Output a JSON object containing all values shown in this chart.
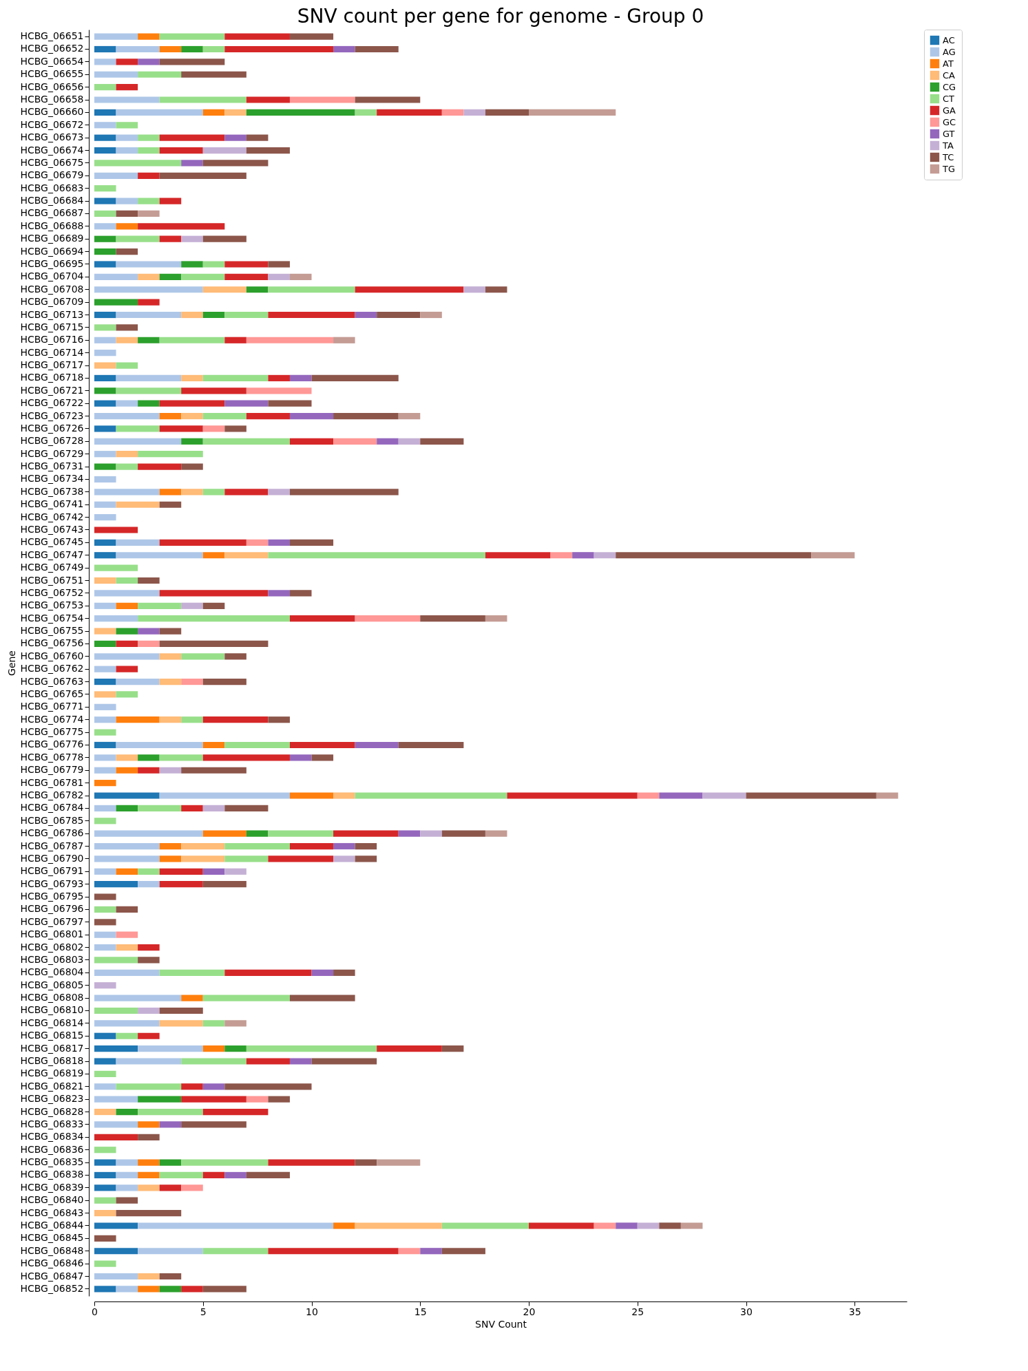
{
  "chart_data": {
    "type": "bar",
    "orientation": "horizontal",
    "stacked": true,
    "title": "SNV count per gene for genome - Group 0",
    "xlabel": "SNV Count",
    "ylabel": "Gene",
    "legend": "top right",
    "grid": false,
    "categories": [
      "HCBG_06651",
      "HCBG_06652",
      "HCBG_06654",
      "HCBG_06655",
      "HCBG_06656",
      "HCBG_06658",
      "HCBG_06660",
      "HCBG_06672",
      "HCBG_06673",
      "HCBG_06674",
      "HCBG_06675",
      "HCBG_06679",
      "HCBG_06683",
      "HCBG_06684",
      "HCBG_06687",
      "HCBG_06688",
      "HCBG_06689",
      "HCBG_06694",
      "HCBG_06695",
      "HCBG_06704",
      "HCBG_06708",
      "HCBG_06709",
      "HCBG_06713",
      "HCBG_06715",
      "HCBG_06716",
      "HCBG_06714",
      "HCBG_06717",
      "HCBG_06718",
      "HCBG_06721",
      "HCBG_06722",
      "HCBG_06723",
      "HCBG_06726",
      "HCBG_06728",
      "HCBG_06729",
      "HCBG_06731",
      "HCBG_06734",
      "HCBG_06738",
      "HCBG_06741",
      "HCBG_06742",
      "HCBG_06743",
      "HCBG_06745",
      "HCBG_06747",
      "HCBG_06749",
      "HCBG_06751",
      "HCBG_06752",
      "HCBG_06753",
      "HCBG_06754",
      "HCBG_06755",
      "HCBG_06756",
      "HCBG_06760",
      "HCBG_06762",
      "HCBG_06763",
      "HCBG_06765",
      "HCBG_06771",
      "HCBG_06774",
      "HCBG_06775",
      "HCBG_06776",
      "HCBG_06778",
      "HCBG_06779",
      "HCBG_06781",
      "HCBG_06782",
      "HCBG_06784",
      "HCBG_06785",
      "HCBG_06786",
      "HCBG_06787",
      "HCBG_06790",
      "HCBG_06791",
      "HCBG_06793",
      "HCBG_06795",
      "HCBG_06796",
      "HCBG_06797",
      "HCBG_06801",
      "HCBG_06802",
      "HCBG_06803",
      "HCBG_06804",
      "HCBG_06805",
      "HCBG_06808",
      "HCBG_06810",
      "HCBG_06814",
      "HCBG_06815",
      "HCBG_06817",
      "HCBG_06818",
      "HCBG_06819",
      "HCBG_06821",
      "HCBG_06823",
      "HCBG_06828",
      "HCBG_06833",
      "HCBG_06834",
      "HCBG_06836",
      "HCBG_06835",
      "HCBG_06838",
      "HCBG_06839",
      "HCBG_06840",
      "HCBG_06843",
      "HCBG_06844",
      "HCBG_06845",
      "HCBG_06848",
      "HCBG_06846",
      "HCBG_06847",
      "HCBG_06852"
    ],
    "xlim": [
      0,
      37.4
    ],
    "xticks": [
      0,
      5,
      10,
      15,
      20,
      25,
      30,
      35
    ],
    "series": [
      {
        "name": "AC",
        "color": "#1f77b4",
        "values": [
          0,
          1,
          0,
          0,
          0,
          0,
          1,
          0,
          1,
          1,
          0,
          0,
          0,
          1,
          0,
          0,
          0,
          0,
          1,
          0,
          0,
          0,
          1,
          0,
          0,
          0,
          0,
          1,
          0,
          1,
          0,
          1,
          0,
          0,
          0,
          0,
          0,
          0,
          0,
          0,
          1,
          1,
          0,
          0,
          0,
          0,
          0,
          0,
          0,
          0,
          0,
          1,
          0,
          0,
          0,
          0,
          1,
          0,
          0,
          0,
          3,
          0,
          0,
          0,
          0,
          0,
          0,
          2,
          0,
          0,
          0,
          0,
          0,
          0,
          0,
          0,
          0,
          0,
          0,
          1,
          2,
          1,
          0,
          0,
          0,
          0,
          0,
          0,
          0,
          1,
          1,
          1,
          0,
          0,
          2,
          0,
          2,
          0,
          0,
          1
        ]
      },
      {
        "name": "AG",
        "color": "#aec7e8",
        "values": [
          2,
          2,
          1,
          2,
          0,
          3,
          4,
          1,
          1,
          1,
          0,
          2,
          0,
          1,
          0,
          1,
          0,
          0,
          3,
          2,
          5,
          0,
          3,
          0,
          1,
          1,
          0,
          3,
          0,
          1,
          3,
          0,
          4,
          1,
          0,
          1,
          3,
          1,
          1,
          0,
          2,
          4,
          0,
          0,
          3,
          1,
          2,
          0,
          0,
          3,
          1,
          2,
          0,
          1,
          1,
          0,
          4,
          1,
          1,
          0,
          6,
          1,
          0,
          5,
          3,
          3,
          1,
          1,
          0,
          0,
          0,
          1,
          1,
          0,
          3,
          0,
          4,
          0,
          3,
          0,
          3,
          3,
          0,
          1,
          2,
          0,
          2,
          0,
          0,
          1,
          1,
          1,
          0,
          0,
          9,
          0,
          3,
          0,
          2,
          1
        ]
      },
      {
        "name": "AT",
        "color": "#ff7f0e",
        "values": [
          1,
          1,
          0,
          0,
          0,
          0,
          1,
          0,
          0,
          0,
          0,
          0,
          0,
          0,
          0,
          1,
          0,
          0,
          0,
          0,
          0,
          0,
          0,
          0,
          0,
          0,
          0,
          0,
          0,
          0,
          1,
          0,
          0,
          0,
          0,
          0,
          1,
          0,
          0,
          0,
          0,
          1,
          0,
          0,
          0,
          1,
          0,
          0,
          0,
          0,
          0,
          0,
          0,
          0,
          2,
          0,
          1,
          0,
          1,
          1,
          2,
          0,
          0,
          2,
          1,
          1,
          1,
          0,
          0,
          0,
          0,
          0,
          0,
          0,
          0,
          0,
          1,
          0,
          0,
          0,
          1,
          0,
          0,
          0,
          0,
          0,
          1,
          0,
          0,
          1,
          1,
          0,
          0,
          0,
          1,
          0,
          0,
          0,
          0,
          1
        ]
      },
      {
        "name": "CA",
        "color": "#ffbb78",
        "values": [
          0,
          0,
          0,
          0,
          0,
          0,
          1,
          0,
          0,
          0,
          0,
          0,
          0,
          0,
          0,
          0,
          0,
          0,
          0,
          1,
          2,
          0,
          1,
          0,
          1,
          0,
          1,
          1,
          0,
          0,
          1,
          0,
          0,
          1,
          0,
          0,
          1,
          2,
          0,
          0,
          0,
          2,
          0,
          1,
          0,
          0,
          0,
          1,
          0,
          1,
          0,
          1,
          1,
          0,
          1,
          0,
          0,
          1,
          0,
          0,
          1,
          0,
          0,
          0,
          2,
          2,
          0,
          0,
          0,
          0,
          0,
          0,
          1,
          0,
          0,
          0,
          0,
          0,
          2,
          0,
          0,
          0,
          0,
          0,
          0,
          1,
          0,
          0,
          0,
          0,
          0,
          1,
          0,
          1,
          4,
          0,
          0,
          0,
          1,
          0
        ]
      },
      {
        "name": "CG",
        "color": "#2ca02c",
        "values": [
          0,
          1,
          0,
          0,
          0,
          0,
          5,
          0,
          0,
          0,
          0,
          0,
          0,
          0,
          0,
          0,
          1,
          1,
          1,
          1,
          1,
          2,
          1,
          0,
          1,
          0,
          0,
          0,
          1,
          1,
          0,
          0,
          1,
          0,
          1,
          0,
          0,
          0,
          0,
          0,
          0,
          0,
          0,
          0,
          0,
          0,
          0,
          1,
          1,
          0,
          0,
          0,
          0,
          0,
          0,
          0,
          0,
          1,
          0,
          0,
          0,
          1,
          0,
          1,
          0,
          0,
          0,
          0,
          0,
          0,
          0,
          0,
          0,
          0,
          0,
          0,
          0,
          0,
          0,
          0,
          1,
          0,
          0,
          0,
          2,
          1,
          0,
          0,
          0,
          1,
          0,
          0,
          0,
          0,
          0,
          0,
          0,
          0,
          0,
          1
        ]
      },
      {
        "name": "CT",
        "color": "#98df8a",
        "values": [
          3,
          1,
          0,
          2,
          1,
          4,
          1,
          1,
          1,
          1,
          4,
          0,
          1,
          1,
          1,
          0,
          2,
          0,
          1,
          2,
          4,
          0,
          2,
          1,
          3,
          0,
          1,
          3,
          3,
          0,
          2,
          2,
          4,
          3,
          1,
          0,
          1,
          0,
          0,
          0,
          0,
          10,
          2,
          1,
          0,
          2,
          7,
          0,
          0,
          2,
          0,
          0,
          1,
          0,
          1,
          1,
          3,
          2,
          0,
          0,
          7,
          2,
          1,
          3,
          3,
          2,
          1,
          0,
          0,
          1,
          0,
          0,
          0,
          2,
          3,
          0,
          4,
          2,
          1,
          1,
          6,
          3,
          1,
          3,
          0,
          3,
          0,
          0,
          1,
          4,
          2,
          0,
          1,
          0,
          4,
          0,
          3,
          1,
          0,
          0
        ]
      },
      {
        "name": "GA",
        "color": "#d62728",
        "values": [
          3,
          5,
          1,
          0,
          1,
          2,
          3,
          0,
          3,
          2,
          0,
          1,
          0,
          1,
          0,
          4,
          1,
          0,
          2,
          2,
          5,
          1,
          4,
          0,
          1,
          0,
          0,
          1,
          3,
          3,
          2,
          2,
          2,
          0,
          2,
          0,
          2,
          0,
          0,
          2,
          4,
          3,
          0,
          0,
          5,
          0,
          3,
          0,
          1,
          0,
          1,
          0,
          0,
          0,
          3,
          0,
          3,
          4,
          1,
          0,
          6,
          1,
          0,
          3,
          2,
          3,
          2,
          2,
          0,
          0,
          0,
          0,
          1,
          0,
          4,
          0,
          0,
          0,
          0,
          1,
          3,
          2,
          0,
          1,
          3,
          3,
          0,
          2,
          0,
          4,
          1,
          1,
          0,
          0,
          3,
          0,
          6,
          0,
          0,
          1
        ]
      },
      {
        "name": "GC",
        "color": "#ff9896",
        "values": [
          0,
          0,
          0,
          0,
          0,
          3,
          1,
          0,
          0,
          0,
          0,
          0,
          0,
          0,
          0,
          0,
          0,
          0,
          0,
          0,
          0,
          0,
          0,
          0,
          4,
          0,
          0,
          0,
          3,
          0,
          0,
          1,
          2,
          0,
          0,
          0,
          0,
          0,
          0,
          0,
          1,
          1,
          0,
          0,
          0,
          0,
          3,
          0,
          1,
          0,
          0,
          1,
          0,
          0,
          0,
          0,
          0,
          0,
          0,
          0,
          1,
          0,
          0,
          0,
          0,
          0,
          0,
          0,
          0,
          0,
          0,
          1,
          0,
          0,
          0,
          0,
          0,
          0,
          0,
          0,
          0,
          0,
          0,
          0,
          1,
          0,
          0,
          0,
          0,
          0,
          0,
          1,
          0,
          0,
          1,
          0,
          1,
          0,
          0,
          0
        ]
      },
      {
        "name": "GT",
        "color": "#9467bd",
        "values": [
          0,
          1,
          1,
          0,
          0,
          0,
          0,
          0,
          1,
          0,
          1,
          0,
          0,
          0,
          0,
          0,
          0,
          0,
          0,
          0,
          0,
          0,
          1,
          0,
          0,
          0,
          0,
          1,
          0,
          2,
          2,
          0,
          1,
          0,
          0,
          0,
          0,
          0,
          0,
          0,
          1,
          1,
          0,
          0,
          1,
          0,
          0,
          1,
          0,
          0,
          0,
          0,
          0,
          0,
          0,
          0,
          2,
          1,
          0,
          0,
          2,
          0,
          0,
          1,
          1,
          0,
          1,
          0,
          0,
          0,
          0,
          0,
          0,
          0,
          1,
          0,
          0,
          0,
          0,
          0,
          0,
          1,
          0,
          1,
          0,
          0,
          1,
          0,
          0,
          0,
          1,
          0,
          0,
          0,
          1,
          0,
          1,
          0,
          0,
          0
        ]
      },
      {
        "name": "TA",
        "color": "#c5b0d5",
        "values": [
          0,
          0,
          0,
          0,
          0,
          0,
          1,
          0,
          0,
          2,
          0,
          0,
          0,
          0,
          0,
          0,
          1,
          0,
          0,
          1,
          1,
          0,
          0,
          0,
          0,
          0,
          0,
          0,
          0,
          0,
          0,
          0,
          1,
          0,
          0,
          0,
          1,
          0,
          0,
          0,
          0,
          1,
          0,
          0,
          0,
          1,
          0,
          0,
          0,
          0,
          0,
          0,
          0,
          0,
          0,
          0,
          0,
          0,
          1,
          0,
          2,
          1,
          0,
          1,
          0,
          1,
          1,
          0,
          0,
          0,
          0,
          0,
          0,
          0,
          0,
          1,
          0,
          1,
          0,
          0,
          0,
          0,
          0,
          0,
          0,
          0,
          0,
          0,
          0,
          0,
          0,
          0,
          0,
          0,
          1,
          0,
          0,
          0,
          0,
          0
        ]
      },
      {
        "name": "TC",
        "color": "#8c564b",
        "values": [
          2,
          2,
          3,
          3,
          0,
          3,
          2,
          0,
          1,
          2,
          3,
          4,
          0,
          0,
          1,
          0,
          2,
          1,
          1,
          0,
          1,
          0,
          2,
          1,
          0,
          0,
          0,
          4,
          0,
          2,
          3,
          1,
          2,
          0,
          1,
          0,
          5,
          1,
          0,
          0,
          2,
          9,
          0,
          1,
          1,
          1,
          3,
          1,
          5,
          1,
          0,
          2,
          0,
          0,
          1,
          0,
          3,
          1,
          3,
          0,
          6,
          2,
          0,
          2,
          1,
          1,
          0,
          2,
          1,
          1,
          1,
          0,
          0,
          1,
          1,
          0,
          3,
          2,
          0,
          0,
          1,
          3,
          0,
          4,
          1,
          0,
          3,
          1,
          0,
          1,
          2,
          0,
          1,
          3,
          1,
          1,
          2,
          0,
          1,
          2
        ]
      },
      {
        "name": "TG",
        "color": "#c49c94",
        "values": [
          0,
          0,
          0,
          0,
          0,
          0,
          4,
          0,
          0,
          0,
          0,
          0,
          0,
          0,
          1,
          0,
          0,
          0,
          0,
          1,
          0,
          0,
          1,
          0,
          1,
          0,
          0,
          0,
          0,
          0,
          1,
          0,
          0,
          0,
          0,
          0,
          0,
          0,
          0,
          0,
          0,
          2,
          0,
          0,
          0,
          0,
          1,
          0,
          0,
          0,
          0,
          0,
          0,
          0,
          0,
          0,
          0,
          0,
          0,
          0,
          1,
          0,
          0,
          1,
          0,
          0,
          0,
          0,
          0,
          0,
          0,
          0,
          0,
          0,
          0,
          0,
          0,
          0,
          1,
          0,
          0,
          0,
          0,
          0,
          0,
          0,
          0,
          0,
          0,
          2,
          0,
          0,
          0,
          0,
          1,
          0,
          0,
          0,
          0,
          0
        ]
      }
    ]
  }
}
